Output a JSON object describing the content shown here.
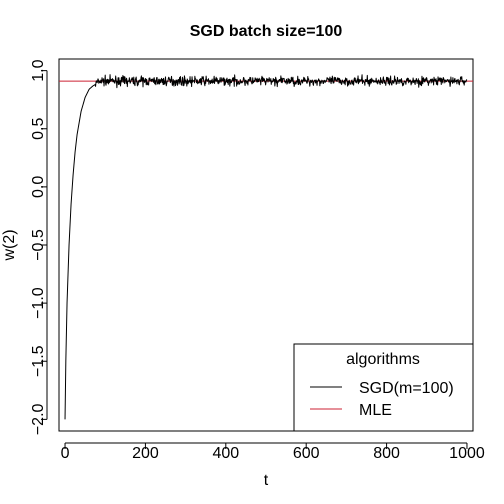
{
  "chart_data": {
    "type": "line",
    "title": "SGD batch size=100",
    "xlabel": "t",
    "ylabel": "w(2)",
    "xlim": [
      -15,
      1015
    ],
    "ylim": [
      -2.1,
      1.1
    ],
    "x_ticks": [
      0,
      200,
      400,
      600,
      800,
      1000
    ],
    "x_tick_labels": [
      "0",
      "200",
      "400",
      "600",
      "800",
      "1000"
    ],
    "y_ticks": [
      -2.0,
      -1.5,
      -1.0,
      -0.5,
      0.0,
      0.5,
      1.0
    ],
    "y_tick_labels": [
      "−2.0",
      "−1.5",
      "−1.0",
      "−0.5",
      "0.0",
      "0.5",
      "1.0"
    ],
    "grid": false,
    "legend": {
      "title": "algorithms",
      "placement": "bottom-right",
      "entries": [
        {
          "label": "SGD(m=100)",
          "color": "#000000"
        },
        {
          "label": "MLE",
          "color": "#cc2233"
        }
      ]
    },
    "series": [
      {
        "name": "SGD(m=100)",
        "color": "#000000",
        "n_points": 1001,
        "start": {
          "x": 0,
          "y": -2.0
        },
        "rise_end": {
          "x": 75,
          "y": 0.88
        },
        "steady_mean": 0.91,
        "noise_amplitude": 0.03,
        "x": [
          0,
          2,
          5,
          10,
          15,
          20,
          25,
          30,
          40,
          50,
          60,
          70,
          75,
          80,
          90,
          100
        ],
        "y": [
          -2.0,
          -1.5,
          -1.0,
          -0.5,
          -0.15,
          0.1,
          0.3,
          0.45,
          0.65,
          0.77,
          0.84,
          0.87,
          0.88,
          0.9,
          0.91,
          0.91
        ]
      },
      {
        "name": "MLE",
        "color": "#cc2233",
        "type": "hline",
        "y": 0.91
      }
    ]
  }
}
